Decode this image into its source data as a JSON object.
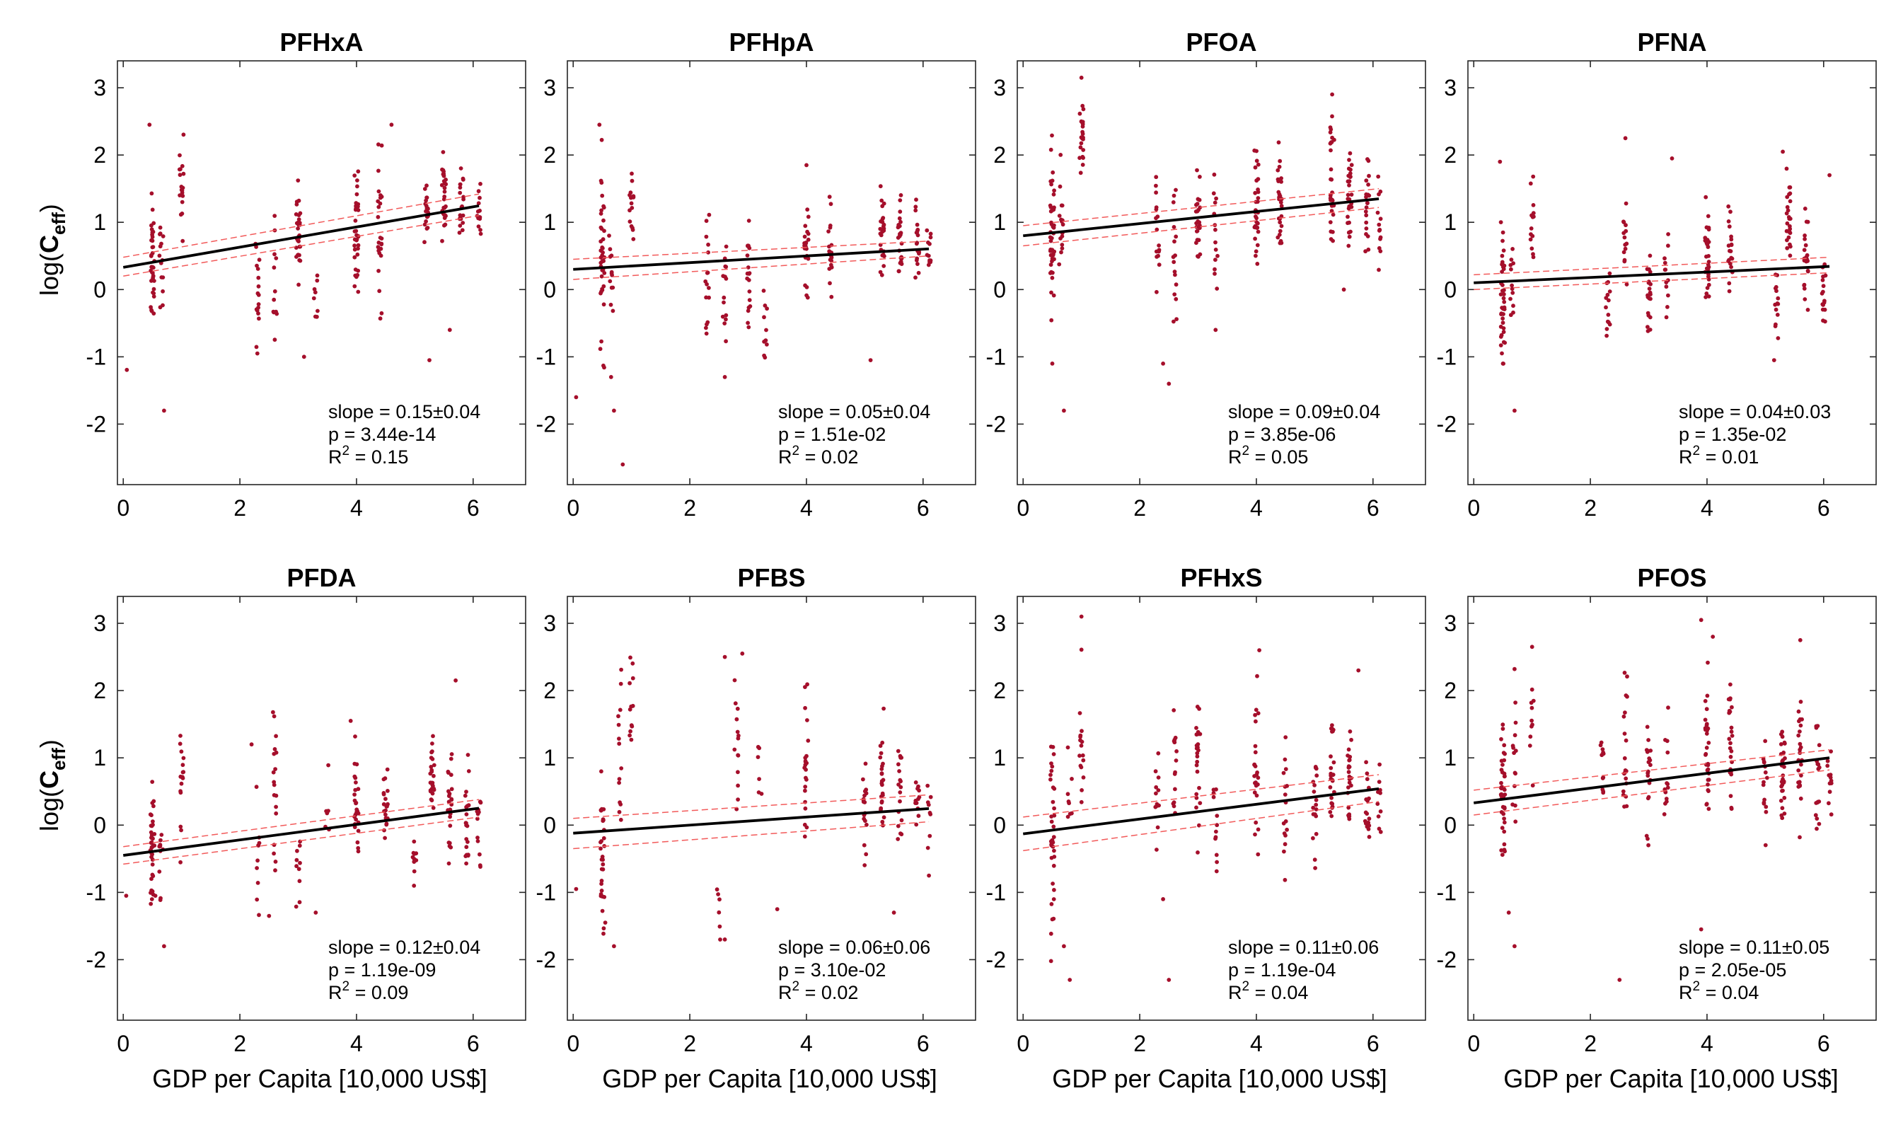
{
  "figure": {
    "xlabel": "GDP per Capita [10,000 US$]",
    "ylabel_main": "log(",
    "ylabel_bold": "C",
    "ylabel_sub": "eff",
    "ylabel_close": ")"
  },
  "chart_data": [
    {
      "type": "scatter",
      "title": "PFHxA",
      "xlim": [
        -0.1,
        6.9
      ],
      "ylim": [
        -2.9,
        3.4
      ],
      "xticks": [
        "0",
        "2",
        "4",
        "6"
      ],
      "yticks": [
        "-2",
        "-1",
        "0",
        "1",
        "2",
        "3"
      ],
      "fit": {
        "intercept": 0.33,
        "slope": 0.15
      },
      "ci": {
        "lower": [
          0.2,
          1.1
        ],
        "upper": [
          0.48,
          1.42
        ]
      },
      "stats": {
        "slope_text": "slope = 0.15±0.04",
        "p_text": "p = 3.44e-14",
        "r2_prefix": "R",
        "r2_sup": "2",
        "r2_value": " = 0.15"
      },
      "clusters": [
        [
          0.05,
          -1.3,
          0.1,
          1
        ],
        [
          0.5,
          0.4,
          0.45,
          36
        ],
        [
          0.65,
          0.3,
          0.35,
          14
        ],
        [
          1.0,
          1.5,
          0.35,
          18
        ],
        [
          2.3,
          0.3,
          0.5,
          16
        ],
        [
          2.6,
          -0.1,
          0.55,
          12
        ],
        [
          3.0,
          0.8,
          0.35,
          30
        ],
        [
          3.3,
          -0.1,
          0.3,
          8
        ],
        [
          4.0,
          1.0,
          0.45,
          34
        ],
        [
          4.4,
          0.9,
          0.6,
          26
        ],
        [
          5.2,
          1.2,
          0.3,
          20
        ],
        [
          5.5,
          1.4,
          0.3,
          28
        ],
        [
          5.8,
          1.3,
          0.3,
          20
        ],
        [
          6.1,
          1.2,
          0.3,
          14
        ]
      ],
      "outliers": [
        [
          0.7,
          -1.8
        ],
        [
          0.45,
          2.45
        ],
        [
          4.6,
          2.45
        ],
        [
          5.25,
          -1.05
        ],
        [
          5.6,
          -0.6
        ],
        [
          3.1,
          -1.0
        ],
        [
          2.3,
          -0.95
        ]
      ]
    },
    {
      "type": "scatter",
      "title": "PFHpA",
      "xlim": [
        -0.1,
        6.9
      ],
      "ylim": [
        -2.9,
        3.4
      ],
      "xticks": [
        "0",
        "2",
        "4",
        "6"
      ],
      "yticks": [
        "-2",
        "-1",
        "0",
        "1",
        "2",
        "3"
      ],
      "fit": {
        "intercept": 0.3,
        "slope": 0.05
      },
      "ci": {
        "lower": [
          0.15,
          0.5
        ],
        "upper": [
          0.45,
          0.72
        ]
      },
      "stats": {
        "slope_text": "slope = 0.05±0.04",
        "p_text": "p = 1.51e-02",
        "r2_prefix": "R",
        "r2_sup": "2",
        "r2_value": " = 0.02"
      },
      "clusters": [
        [
          0.5,
          0.5,
          0.65,
          40
        ],
        [
          0.65,
          0.2,
          0.35,
          12
        ],
        [
          1.0,
          1.3,
          0.35,
          16
        ],
        [
          2.3,
          0.2,
          0.5,
          16
        ],
        [
          2.6,
          -0.2,
          0.55,
          14
        ],
        [
          3.0,
          0.3,
          0.4,
          20
        ],
        [
          3.3,
          -0.4,
          0.4,
          10
        ],
        [
          4.0,
          0.5,
          0.35,
          26
        ],
        [
          4.4,
          0.6,
          0.35,
          20
        ],
        [
          5.3,
          0.8,
          0.35,
          26
        ],
        [
          5.6,
          0.7,
          0.3,
          24
        ],
        [
          5.9,
          0.6,
          0.3,
          20
        ],
        [
          6.1,
          0.5,
          0.25,
          12
        ]
      ],
      "outliers": [
        [
          0.05,
          -1.6
        ],
        [
          0.7,
          -1.8
        ],
        [
          0.85,
          -2.6
        ],
        [
          0.45,
          2.45
        ],
        [
          5.1,
          -1.05
        ],
        [
          4.0,
          1.85
        ],
        [
          2.6,
          -1.3
        ],
        [
          0.65,
          -1.3
        ]
      ]
    },
    {
      "type": "scatter",
      "title": "PFOA",
      "xlim": [
        -0.1,
        6.9
      ],
      "ylim": [
        -2.9,
        3.4
      ],
      "xticks": [
        "0",
        "2",
        "4",
        "6"
      ],
      "yticks": [
        "-2",
        "-1",
        "0",
        "1",
        "2",
        "3"
      ],
      "fit": {
        "intercept": 0.8,
        "slope": 0.09
      },
      "ci": {
        "lower": [
          0.65,
          1.22
        ],
        "upper": [
          0.95,
          1.5
        ]
      },
      "stats": {
        "slope_text": "slope = 0.09±0.04",
        "p_text": "p = 3.85e-06",
        "r2_prefix": "R",
        "r2_sup": "2",
        "r2_value": " = 0.05"
      },
      "clusters": [
        [
          0.5,
          0.8,
          0.6,
          44
        ],
        [
          0.65,
          1.0,
          0.4,
          16
        ],
        [
          1.0,
          2.4,
          0.35,
          22
        ],
        [
          2.3,
          0.8,
          0.45,
          16
        ],
        [
          2.6,
          0.6,
          0.6,
          16
        ],
        [
          3.0,
          1.0,
          0.35,
          26
        ],
        [
          3.3,
          0.7,
          0.5,
          14
        ],
        [
          4.0,
          1.2,
          0.35,
          32
        ],
        [
          4.4,
          1.3,
          0.4,
          28
        ],
        [
          5.3,
          1.7,
          0.5,
          30
        ],
        [
          5.6,
          1.3,
          0.35,
          28
        ],
        [
          5.9,
          1.3,
          0.35,
          20
        ],
        [
          6.1,
          1.0,
          0.3,
          14
        ]
      ],
      "outliers": [
        [
          0.7,
          -1.8
        ],
        [
          0.5,
          -1.1
        ],
        [
          2.5,
          -1.4
        ],
        [
          2.4,
          -1.1
        ],
        [
          1.0,
          3.15
        ],
        [
          5.3,
          2.9
        ],
        [
          5.5,
          0.0
        ],
        [
          3.3,
          -0.6
        ]
      ]
    },
    {
      "type": "scatter",
      "title": "PFNA",
      "xlim": [
        -0.1,
        6.9
      ],
      "ylim": [
        -2.9,
        3.4
      ],
      "xticks": [
        "0",
        "2",
        "4",
        "6"
      ],
      "yticks": [
        "-2",
        "-1",
        "0",
        "1",
        "2",
        "3"
      ],
      "fit": {
        "intercept": 0.1,
        "slope": 0.04
      },
      "ci": {
        "lower": [
          0.0,
          0.25
        ],
        "upper": [
          0.22,
          0.48
        ]
      },
      "stats": {
        "slope_text": "slope = 0.04±0.03",
        "p_text": "p = 1.35e-02",
        "r2_prefix": "R",
        "r2_sup": "2",
        "r2_value": " = 0.01"
      },
      "clusters": [
        [
          0.5,
          0.0,
          0.55,
          40
        ],
        [
          0.65,
          0.2,
          0.35,
          12
        ],
        [
          1.0,
          1.0,
          0.4,
          14
        ],
        [
          2.3,
          -0.3,
          0.35,
          14
        ],
        [
          2.6,
          0.6,
          0.55,
          14
        ],
        [
          3.0,
          0.0,
          0.35,
          20
        ],
        [
          3.3,
          0.3,
          0.35,
          12
        ],
        [
          4.0,
          0.5,
          0.45,
          30
        ],
        [
          4.4,
          0.6,
          0.4,
          20
        ],
        [
          5.2,
          -0.2,
          0.25,
          14
        ],
        [
          5.4,
          1.0,
          0.35,
          26
        ],
        [
          5.7,
          0.5,
          0.4,
          22
        ],
        [
          6.0,
          -0.1,
          0.35,
          16
        ]
      ],
      "outliers": [
        [
          0.5,
          -1.1
        ],
        [
          0.7,
          -1.8
        ],
        [
          5.15,
          -1.05
        ],
        [
          0.45,
          1.9
        ],
        [
          5.3,
          2.05
        ],
        [
          2.6,
          2.25
        ],
        [
          6.1,
          1.7
        ],
        [
          3.4,
          1.95
        ]
      ]
    },
    {
      "type": "scatter",
      "title": "PFDA",
      "xlim": [
        -0.1,
        6.9
      ],
      "ylim": [
        -2.9,
        3.4
      ],
      "xticks": [
        "0",
        "2",
        "4",
        "6"
      ],
      "yticks": [
        "-2",
        "-1",
        "0",
        "1",
        "2",
        "3"
      ],
      "fit": {
        "intercept": -0.45,
        "slope": 0.115
      },
      "ci": {
        "lower": [
          -0.58,
          0.12
        ],
        "upper": [
          -0.32,
          0.38
        ]
      },
      "stats": {
        "slope_text": "slope = 0.12±0.04",
        "p_text": "p = 1.19e-09",
        "r2_prefix": "R",
        "r2_sup": "2",
        "r2_value": " = 0.09"
      },
      "clusters": [
        [
          0.5,
          -0.3,
          0.45,
          40
        ],
        [
          0.65,
          -0.5,
          0.3,
          12
        ],
        [
          1.0,
          0.5,
          0.4,
          16
        ],
        [
          2.3,
          -0.6,
          0.4,
          10
        ],
        [
          2.6,
          0.6,
          0.65,
          18
        ],
        [
          3.0,
          -0.5,
          0.3,
          10
        ],
        [
          3.5,
          0.2,
          0.25,
          6
        ],
        [
          4.0,
          0.3,
          0.4,
          26
        ],
        [
          4.5,
          0.2,
          0.35,
          20
        ],
        [
          5.0,
          -0.4,
          0.2,
          10
        ],
        [
          5.3,
          0.6,
          0.35,
          26
        ],
        [
          5.6,
          0.4,
          0.4,
          24
        ],
        [
          5.9,
          0.2,
          0.35,
          20
        ],
        [
          6.1,
          -0.1,
          0.3,
          12
        ]
      ],
      "outliers": [
        [
          0.05,
          -1.05
        ],
        [
          0.7,
          -1.8
        ],
        [
          0.55,
          -1.05
        ],
        [
          2.5,
          -1.35
        ],
        [
          3.3,
          -1.3
        ],
        [
          5.7,
          2.15
        ],
        [
          3.9,
          1.55
        ],
        [
          2.2,
          1.2
        ]
      ]
    },
    {
      "type": "scatter",
      "title": "PFBS",
      "xlim": [
        -0.1,
        6.9
      ],
      "ylim": [
        -2.9,
        3.4
      ],
      "xticks": [
        "0",
        "2",
        "4",
        "6"
      ],
      "yticks": [
        "-2",
        "-1",
        "0",
        "1",
        "2",
        "3"
      ],
      "fit": {
        "intercept": -0.12,
        "slope": 0.06
      },
      "ci": {
        "lower": [
          -0.35,
          0.05
        ],
        "upper": [
          0.1,
          0.45
        ]
      },
      "stats": {
        "slope_text": "slope = 0.06±0.06",
        "p_text": "p = 3.10e-02",
        "r2_prefix": "R",
        "r2_sup": "2",
        "r2_value": " = 0.02"
      },
      "clusters": [
        [
          0.5,
          -0.2,
          0.6,
          30
        ],
        [
          0.8,
          1.2,
          0.7,
          14
        ],
        [
          1.0,
          1.7,
          0.5,
          12
        ],
        [
          2.5,
          -1.2,
          0.3,
          6
        ],
        [
          2.8,
          1.2,
          0.5,
          14
        ],
        [
          3.2,
          0.8,
          0.3,
          6
        ],
        [
          4.0,
          0.9,
          0.6,
          22
        ],
        [
          5.0,
          0.1,
          0.6,
          18
        ],
        [
          5.3,
          0.5,
          0.5,
          24
        ],
        [
          5.6,
          0.4,
          0.4,
          18
        ],
        [
          5.9,
          0.3,
          0.3,
          12
        ],
        [
          6.1,
          0.2,
          0.3,
          8
        ]
      ],
      "outliers": [
        [
          0.05,
          -0.95
        ],
        [
          0.7,
          -1.8
        ],
        [
          2.6,
          -1.7
        ],
        [
          2.6,
          2.5
        ],
        [
          2.9,
          2.55
        ],
        [
          0.55,
          -1.45
        ],
        [
          3.5,
          -1.25
        ],
        [
          5.5,
          -1.3
        ],
        [
          6.1,
          -0.75
        ]
      ]
    },
    {
      "type": "scatter",
      "title": "PFHxS",
      "xlim": [
        -0.1,
        6.9
      ],
      "ylim": [
        -2.9,
        3.4
      ],
      "xticks": [
        "0",
        "2",
        "4",
        "6"
      ],
      "yticks": [
        "-2",
        "-1",
        "0",
        "1",
        "2",
        "3"
      ],
      "fit": {
        "intercept": -0.13,
        "slope": 0.11
      },
      "ci": {
        "lower": [
          -0.38,
          0.35
        ],
        "upper": [
          0.12,
          0.75
        ]
      },
      "stats": {
        "slope_text": "slope = 0.11±0.06",
        "p_text": "p = 1.19e-04",
        "r2_prefix": "R",
        "r2_sup": "2",
        "r2_value": " = 0.04"
      },
      "clusters": [
        [
          0.5,
          -0.2,
          0.7,
          34
        ],
        [
          0.8,
          0.6,
          0.4,
          8
        ],
        [
          1.0,
          1.2,
          0.5,
          16
        ],
        [
          2.3,
          0.4,
          0.4,
          12
        ],
        [
          2.6,
          0.6,
          0.5,
          14
        ],
        [
          3.0,
          0.8,
          0.6,
          24
        ],
        [
          3.3,
          0.0,
          0.5,
          12
        ],
        [
          4.0,
          0.8,
          0.5,
          24
        ],
        [
          4.5,
          0.3,
          0.5,
          16
        ],
        [
          5.0,
          0.5,
          0.5,
          18
        ],
        [
          5.3,
          0.8,
          0.4,
          26
        ],
        [
          5.6,
          0.6,
          0.4,
          24
        ],
        [
          5.9,
          0.3,
          0.45,
          18
        ],
        [
          6.1,
          0.4,
          0.3,
          10
        ]
      ],
      "outliers": [
        [
          0.8,
          -2.3
        ],
        [
          0.7,
          -1.8
        ],
        [
          2.5,
          -2.3
        ],
        [
          1.0,
          3.1
        ],
        [
          4.05,
          2.6
        ],
        [
          5.75,
          2.3
        ],
        [
          2.4,
          -1.1
        ],
        [
          0.5,
          -1.4
        ]
      ]
    },
    {
      "type": "scatter",
      "title": "PFOS",
      "xlim": [
        -0.1,
        6.9
      ],
      "ylim": [
        -2.9,
        3.4
      ],
      "xticks": [
        "0",
        "2",
        "4",
        "6"
      ],
      "yticks": [
        "-2",
        "-1",
        "0",
        "1",
        "2",
        "3"
      ],
      "fit": {
        "intercept": 0.33,
        "slope": 0.11
      },
      "ci": {
        "lower": [
          0.15,
          0.82
        ],
        "upper": [
          0.52,
          1.12
        ]
      },
      "stats": {
        "slope_text": "slope = 0.11±0.05",
        "p_text": "p = 2.05e-05",
        "r2_prefix": "R",
        "r2_sup": "2",
        "r2_value": " = 0.04"
      },
      "clusters": [
        [
          0.5,
          0.5,
          0.6,
          40
        ],
        [
          0.7,
          1.2,
          0.5,
          14
        ],
        [
          1.0,
          1.6,
          0.4,
          10
        ],
        [
          2.2,
          0.7,
          0.4,
          12
        ],
        [
          2.6,
          1.0,
          0.7,
          20
        ],
        [
          3.0,
          0.8,
          0.5,
          20
        ],
        [
          3.3,
          0.6,
          0.5,
          14
        ],
        [
          4.0,
          1.2,
          0.6,
          30
        ],
        [
          4.4,
          1.2,
          0.5,
          24
        ],
        [
          5.0,
          0.6,
          0.4,
          16
        ],
        [
          5.3,
          0.9,
          0.45,
          28
        ],
        [
          5.6,
          1.0,
          0.45,
          24
        ],
        [
          5.9,
          0.8,
          0.4,
          18
        ],
        [
          6.1,
          0.6,
          0.3,
          12
        ]
      ],
      "outliers": [
        [
          0.7,
          -1.8
        ],
        [
          0.6,
          -1.3
        ],
        [
          2.5,
          -2.3
        ],
        [
          3.9,
          3.05
        ],
        [
          5.6,
          2.75
        ],
        [
          4.1,
          2.8
        ],
        [
          3.9,
          -1.55
        ],
        [
          1.0,
          2.65
        ]
      ]
    }
  ],
  "colors": {
    "points": "#a50f2b",
    "fit": "#000000",
    "ci": "#f25a5a"
  }
}
